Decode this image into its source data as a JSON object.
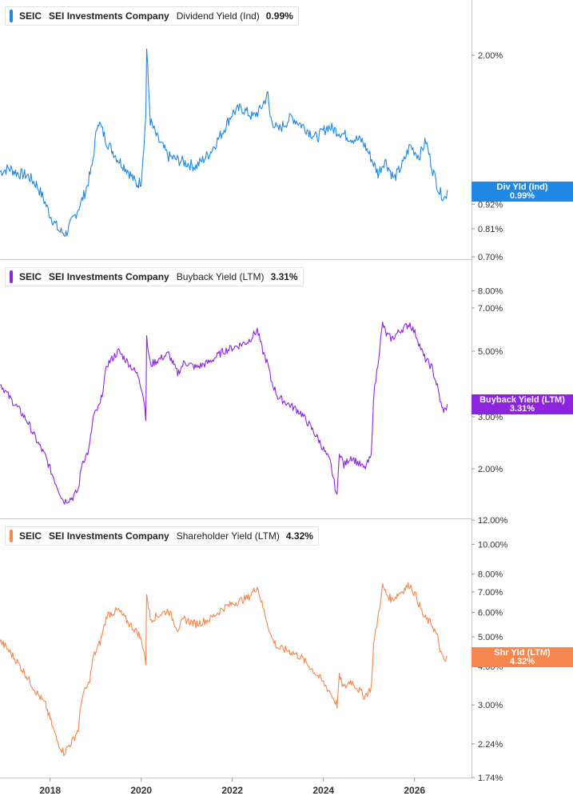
{
  "panels": [
    {
      "ticker": "SEIC",
      "company": "SEI Investments Company",
      "metric": "Dividend Yield (Ind)",
      "value": "0.99%",
      "color": "#1e88e5",
      "tag_label": "Div Yld (Ind)",
      "tag_value": "0.99%"
    },
    {
      "ticker": "SEIC",
      "company": "SEI Investments Company",
      "metric": "Buyback Yield (LTM)",
      "value": "3.31%",
      "color": "#8e24e0",
      "tag_label": "Buyback Yield (LTM)",
      "tag_value": "3.31%"
    },
    {
      "ticker": "SEIC",
      "company": "SEI Investments Company",
      "metric": "Shareholder Yield (LTM)",
      "value": "4.32%",
      "color": "#f5874f",
      "tag_label": "Shr Yld (LTM)",
      "tag_value": "4.32%"
    }
  ],
  "chart_data": [
    {
      "type": "line",
      "title": "SEIC SEI Investments Company Dividend Yield (Ind)",
      "scale": "log",
      "ylim": [
        0.7,
        2.5
      ],
      "yticks": [
        0.7,
        0.81,
        0.92,
        2.0
      ],
      "ytick_labels": [
        "0.70%",
        "0.81%",
        "0.92%",
        "2.00%"
      ],
      "xlim": [
        2016.9,
        2026.9
      ],
      "xticks": [
        2018,
        2020,
        2022,
        2024,
        2026
      ],
      "series": [
        {
          "name": "Dividend Yield (Ind)",
          "x": [
            2016.9,
            2017.1,
            2017.3,
            2017.5,
            2017.7,
            2017.85,
            2018.0,
            2018.2,
            2018.35,
            2018.55,
            2018.7,
            2018.8,
            2018.92,
            2019.05,
            2019.25,
            2019.5,
            2019.7,
            2019.9,
            2020.0,
            2020.1,
            2020.12,
            2020.2,
            2020.35,
            2020.6,
            2020.9,
            2021.2,
            2021.5,
            2021.8,
            2022.0,
            2022.2,
            2022.45,
            2022.6,
            2022.78,
            2022.83,
            2023.0,
            2023.3,
            2023.6,
            2023.85,
            2024.1,
            2024.35,
            2024.6,
            2024.85,
            2025.0,
            2025.2,
            2025.35,
            2025.55,
            2025.75,
            2025.9,
            2026.1,
            2026.25,
            2026.4,
            2026.55,
            2026.68,
            2026.72
          ],
          "values": [
            1.09,
            1.11,
            1.08,
            1.07,
            1.02,
            0.95,
            0.87,
            0.8,
            0.79,
            0.87,
            0.94,
            1.0,
            1.12,
            1.43,
            1.27,
            1.16,
            1.1,
            1.02,
            1.04,
            1.45,
            2.06,
            1.42,
            1.3,
            1.18,
            1.15,
            1.12,
            1.2,
            1.35,
            1.48,
            1.52,
            1.45,
            1.5,
            1.63,
            1.45,
            1.35,
            1.45,
            1.37,
            1.3,
            1.38,
            1.34,
            1.3,
            1.28,
            1.2,
            1.08,
            1.16,
            1.05,
            1.14,
            1.25,
            1.18,
            1.28,
            1.1,
            0.98,
            0.95,
            0.99
          ]
        }
      ]
    },
    {
      "type": "line",
      "title": "SEIC SEI Investments Company Buyback Yield (LTM)",
      "scale": "log",
      "ylim": [
        1.2,
        9.0
      ],
      "yticks": [
        2.0,
        3.0,
        5.0,
        7.0,
        8.0
      ],
      "ytick_labels": [
        "2.00%",
        "3.00%",
        "5.00%",
        "7.00%",
        "8.00%"
      ],
      "xlim": [
        2016.9,
        2026.9
      ],
      "xticks": [
        2018,
        2020,
        2022,
        2024,
        2026
      ],
      "series": [
        {
          "name": "Buyback Yield (LTM)",
          "x": [
            2016.9,
            2017.1,
            2017.3,
            2017.5,
            2017.7,
            2017.9,
            2018.0,
            2018.15,
            2018.3,
            2018.5,
            2018.62,
            2018.7,
            2018.85,
            2018.95,
            2019.1,
            2019.25,
            2019.5,
            2019.7,
            2019.95,
            2020.05,
            2020.1,
            2020.12,
            2020.2,
            2020.4,
            2020.6,
            2020.8,
            2020.95,
            2021.2,
            2021.5,
            2021.8,
            2022.1,
            2022.35,
            2022.55,
            2022.65,
            2022.78,
            2022.85,
            2023.0,
            2023.25,
            2023.5,
            2023.7,
            2023.9,
            2024.15,
            2024.3,
            2024.35,
            2024.45,
            2024.6,
            2024.75,
            2024.9,
            2025.05,
            2025.1,
            2025.15,
            2025.3,
            2025.38,
            2025.5,
            2025.7,
            2025.9,
            2026.05,
            2026.2,
            2026.38,
            2026.5,
            2026.6,
            2026.68,
            2026.72
          ],
          "values": [
            3.9,
            3.5,
            3.2,
            2.9,
            2.5,
            2.2,
            2.0,
            1.75,
            1.55,
            1.6,
            1.7,
            2.1,
            2.3,
            3.0,
            3.3,
            4.5,
            5.0,
            4.6,
            4.1,
            3.5,
            3.0,
            5.5,
            4.5,
            4.7,
            4.9,
            4.2,
            4.6,
            4.4,
            4.6,
            5.0,
            5.2,
            5.4,
            5.9,
            5.1,
            4.5,
            4.0,
            3.5,
            3.3,
            3.1,
            2.8,
            2.5,
            2.1,
            1.6,
            2.3,
            2.05,
            2.2,
            2.1,
            2.0,
            2.2,
            3.5,
            4.0,
            6.2,
            5.7,
            5.5,
            5.9,
            6.2,
            5.6,
            4.8,
            4.4,
            3.8,
            3.2,
            3.15,
            3.31
          ]
        }
      ]
    },
    {
      "type": "line",
      "title": "SEIC SEI Investments Company Shareholder Yield (LTM)",
      "scale": "log",
      "ylim": [
        1.74,
        12.0
      ],
      "yticks": [
        1.74,
        2.24,
        3.0,
        4.0,
        5.0,
        6.0,
        7.0,
        8.0,
        10.0,
        12.0
      ],
      "ytick_labels": [
        "1.74%",
        "2.24%",
        "3.00%",
        "4.00%",
        "5.00%",
        "6.00%",
        "7.00%",
        "8.00%",
        "10.00%",
        "12.00%"
      ],
      "xlim": [
        2016.9,
        2026.9
      ],
      "xticks": [
        2018,
        2020,
        2022,
        2024,
        2026
      ],
      "series": [
        {
          "name": "Shareholder Yield (LTM)",
          "x": [
            2016.9,
            2017.1,
            2017.3,
            2017.5,
            2017.7,
            2017.9,
            2018.0,
            2018.15,
            2018.3,
            2018.5,
            2018.62,
            2018.7,
            2018.85,
            2018.95,
            2019.1,
            2019.25,
            2019.5,
            2019.7,
            2019.95,
            2020.05,
            2020.1,
            2020.12,
            2020.2,
            2020.4,
            2020.6,
            2020.8,
            2020.95,
            2021.2,
            2021.5,
            2021.8,
            2022.1,
            2022.35,
            2022.55,
            2022.65,
            2022.78,
            2022.85,
            2023.0,
            2023.25,
            2023.5,
            2023.7,
            2023.9,
            2024.15,
            2024.3,
            2024.35,
            2024.45,
            2024.6,
            2024.75,
            2024.9,
            2025.05,
            2025.1,
            2025.15,
            2025.3,
            2025.38,
            2025.5,
            2025.7,
            2025.9,
            2026.05,
            2026.2,
            2026.38,
            2026.5,
            2026.6,
            2026.68,
            2026.72
          ],
          "values": [
            4.85,
            4.5,
            4.1,
            3.7,
            3.3,
            3.0,
            2.7,
            2.3,
            2.1,
            2.3,
            2.5,
            3.2,
            3.5,
            4.3,
            4.8,
            5.9,
            6.1,
            5.6,
            5.1,
            4.6,
            4.1,
            7.0,
            5.7,
            5.9,
            6.1,
            5.3,
            5.7,
            5.5,
            5.7,
            6.2,
            6.5,
            6.7,
            7.3,
            6.4,
            5.5,
            5.0,
            4.6,
            4.5,
            4.3,
            4.0,
            3.7,
            3.3,
            3.0,
            3.7,
            3.4,
            3.6,
            3.4,
            3.2,
            3.4,
            4.7,
            5.2,
            7.3,
            6.9,
            6.6,
            7.0,
            7.4,
            6.7,
            5.8,
            5.5,
            5.0,
            4.3,
            4.15,
            4.32
          ]
        }
      ]
    }
  ]
}
